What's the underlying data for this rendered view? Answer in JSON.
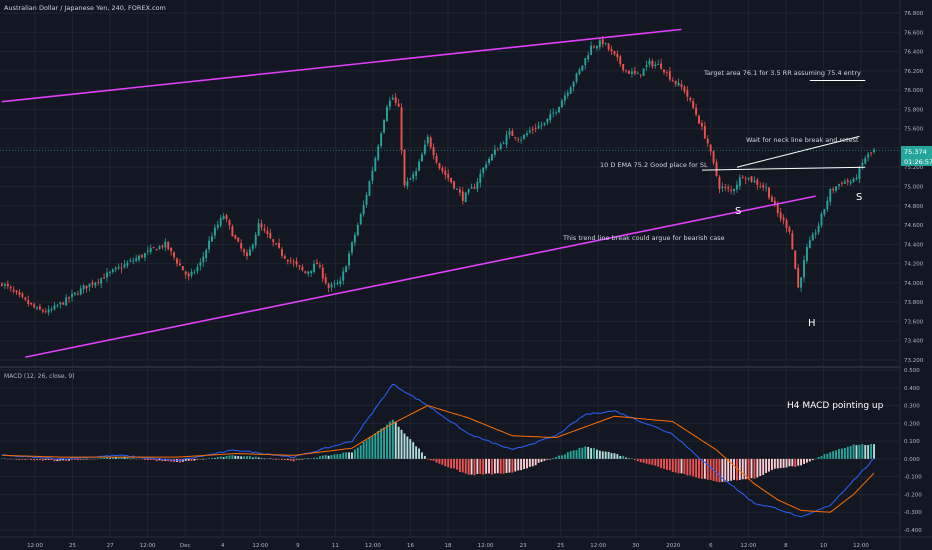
{
  "header": {
    "title": "Australian Dollar / Japanese Yen, 240, FOREX.com",
    "macd_title": "MACD (12, 26, close, 9)"
  },
  "colors": {
    "background": "#131722",
    "grid": "#1f2430",
    "axis_text": "#b2b5be",
    "bull": "#26a69a",
    "bear": "#ef5350",
    "trendline": "#e040fb",
    "annotation_line": "#ffffff",
    "macd_line": "#2962ff",
    "signal_line": "#ff6d00",
    "price_badge": "#26a69a",
    "hist_pos_strong": "#26a69a",
    "hist_pos_weak": "#b2dfdb",
    "hist_neg_strong": "#ef5350",
    "hist_neg_weak": "#ffcdd2"
  },
  "axes": {
    "price_ticks": [
      "76.800",
      "76.600",
      "76.400",
      "76.200",
      "76.000",
      "75.800",
      "75.600",
      "75.400",
      "75.200",
      "75.000",
      "74.800",
      "74.600",
      "74.400",
      "74.200",
      "74.000",
      "73.800",
      "73.600",
      "73.400",
      "73.200"
    ],
    "macd_ticks": [
      "0.500",
      "0.400",
      "0.300",
      "0.200",
      "0.100",
      "0.000",
      "-0.100",
      "-0.200",
      "-0.300",
      "-0.400"
    ],
    "x_ticks": [
      "12:00",
      "25",
      "27",
      "12:00",
      "Dec",
      "4",
      "12:00",
      "9",
      "11",
      "12:00",
      "16",
      "18",
      "12:00",
      "23",
      "25",
      "12:00",
      "30",
      "2020",
      "6",
      "12:00",
      "8",
      "10",
      "12:00"
    ],
    "last_price": "75.374",
    "countdown": "01:26:57"
  },
  "annotations": {
    "target": "Target area 76.1 for 3.5 RR assuming 75.4 entry",
    "neckline": "Wait for neck line break and retest",
    "ema": "10 D EMA 75.2 Good place for SL",
    "trendbreak": "This trend line break could argue for bearish case",
    "shoulder_left": "S",
    "head": "H",
    "shoulder_right": "S",
    "macd_note": "H4 MACD pointing up"
  },
  "chart_data": {
    "type": "candlestick",
    "title": "Australian Dollar / Japanese Yen, 240, FOREX.com",
    "ylim": [
      73.2,
      76.8
    ],
    "macd_ylim": [
      -0.4,
      0.5
    ],
    "price_anchors": [
      [
        0,
        74.0
      ],
      [
        6,
        73.85
      ],
      [
        12,
        73.72
      ],
      [
        16,
        73.7
      ],
      [
        22,
        73.82
      ],
      [
        28,
        73.95
      ],
      [
        34,
        74.05
      ],
      [
        40,
        74.15
      ],
      [
        46,
        74.25
      ],
      [
        52,
        74.35
      ],
      [
        56,
        74.4
      ],
      [
        60,
        74.22
      ],
      [
        64,
        74.05
      ],
      [
        68,
        74.2
      ],
      [
        72,
        74.5
      ],
      [
        76,
        74.7
      ],
      [
        80,
        74.45
      ],
      [
        84,
        74.25
      ],
      [
        88,
        74.6
      ],
      [
        92,
        74.45
      ],
      [
        96,
        74.3
      ],
      [
        100,
        74.2
      ],
      [
        104,
        74.1
      ],
      [
        108,
        74.2
      ],
      [
        112,
        73.95
      ],
      [
        116,
        74.0
      ],
      [
        120,
        74.4
      ],
      [
        124,
        74.8
      ],
      [
        128,
        75.3
      ],
      [
        132,
        75.85
      ],
      [
        134,
        75.92
      ],
      [
        136,
        75.8
      ],
      [
        138,
        75.0
      ],
      [
        142,
        75.15
      ],
      [
        146,
        75.5
      ],
      [
        150,
        75.2
      ],
      [
        154,
        75.05
      ],
      [
        158,
        74.88
      ],
      [
        162,
        75.0
      ],
      [
        166,
        75.25
      ],
      [
        170,
        75.4
      ],
      [
        174,
        75.55
      ],
      [
        178,
        75.5
      ],
      [
        182,
        75.6
      ],
      [
        186,
        75.65
      ],
      [
        190,
        75.8
      ],
      [
        194,
        76.0
      ],
      [
        198,
        76.2
      ],
      [
        202,
        76.45
      ],
      [
        206,
        76.5
      ],
      [
        210,
        76.35
      ],
      [
        214,
        76.2
      ],
      [
        218,
        76.15
      ],
      [
        222,
        76.28
      ],
      [
        226,
        76.25
      ],
      [
        230,
        76.1
      ],
      [
        234,
        76.0
      ],
      [
        238,
        75.75
      ],
      [
        242,
        75.45
      ],
      [
        246,
        75.0
      ],
      [
        250,
        74.95
      ],
      [
        254,
        75.12
      ],
      [
        258,
        75.05
      ],
      [
        262,
        74.98
      ],
      [
        266,
        74.72
      ],
      [
        270,
        74.55
      ],
      [
        273,
        73.95
      ],
      [
        276,
        74.35
      ],
      [
        280,
        74.6
      ],
      [
        284,
        74.95
      ],
      [
        288,
        75.05
      ],
      [
        292,
        75.05
      ],
      [
        296,
        75.3
      ],
      [
        299,
        75.374
      ]
    ],
    "trendlines": [
      {
        "name": "upper channel",
        "points": [
          [
            0,
            75.88
          ],
          [
            233,
            76.63
          ]
        ]
      },
      {
        "name": "lower channel",
        "points": [
          [
            8,
            73.23
          ],
          [
            279,
            74.9
          ]
        ]
      }
    ],
    "annotation_lines": [
      {
        "name": "target level",
        "points": [
          [
            277,
            76.1
          ],
          [
            296,
            76.1
          ]
        ]
      },
      {
        "name": "neckline",
        "points": [
          [
            252,
            75.2
          ],
          [
            294,
            75.52
          ]
        ]
      },
      {
        "name": "ema level",
        "points": [
          [
            240,
            75.17
          ],
          [
            296,
            75.2
          ]
        ]
      }
    ],
    "macd_anchors": [
      [
        0,
        0.02
      ],
      [
        20,
        0.0
      ],
      [
        40,
        0.02
      ],
      [
        60,
        -0.01
      ],
      [
        80,
        0.05
      ],
      [
        100,
        0.01
      ],
      [
        120,
        0.1
      ],
      [
        134,
        0.42
      ],
      [
        146,
        0.3
      ],
      [
        160,
        0.14
      ],
      [
        175,
        0.05
      ],
      [
        190,
        0.13
      ],
      [
        200,
        0.25
      ],
      [
        210,
        0.27
      ],
      [
        230,
        0.14
      ],
      [
        245,
        -0.08
      ],
      [
        258,
        -0.25
      ],
      [
        266,
        -0.28
      ],
      [
        274,
        -0.33
      ],
      [
        284,
        -0.26
      ],
      [
        292,
        -0.12
      ],
      [
        299,
        0.0
      ]
    ],
    "signal_anchors": [
      [
        0,
        0.02
      ],
      [
        20,
        0.01
      ],
      [
        40,
        0.01
      ],
      [
        60,
        0.01
      ],
      [
        80,
        0.03
      ],
      [
        100,
        0.02
      ],
      [
        120,
        0.06
      ],
      [
        134,
        0.2
      ],
      [
        146,
        0.3
      ],
      [
        160,
        0.23
      ],
      [
        175,
        0.13
      ],
      [
        190,
        0.12
      ],
      [
        200,
        0.18
      ],
      [
        210,
        0.24
      ],
      [
        230,
        0.21
      ],
      [
        245,
        0.05
      ],
      [
        258,
        -0.14
      ],
      [
        266,
        -0.23
      ],
      [
        274,
        -0.29
      ],
      [
        284,
        -0.3
      ],
      [
        292,
        -0.2
      ],
      [
        299,
        -0.08
      ]
    ]
  }
}
